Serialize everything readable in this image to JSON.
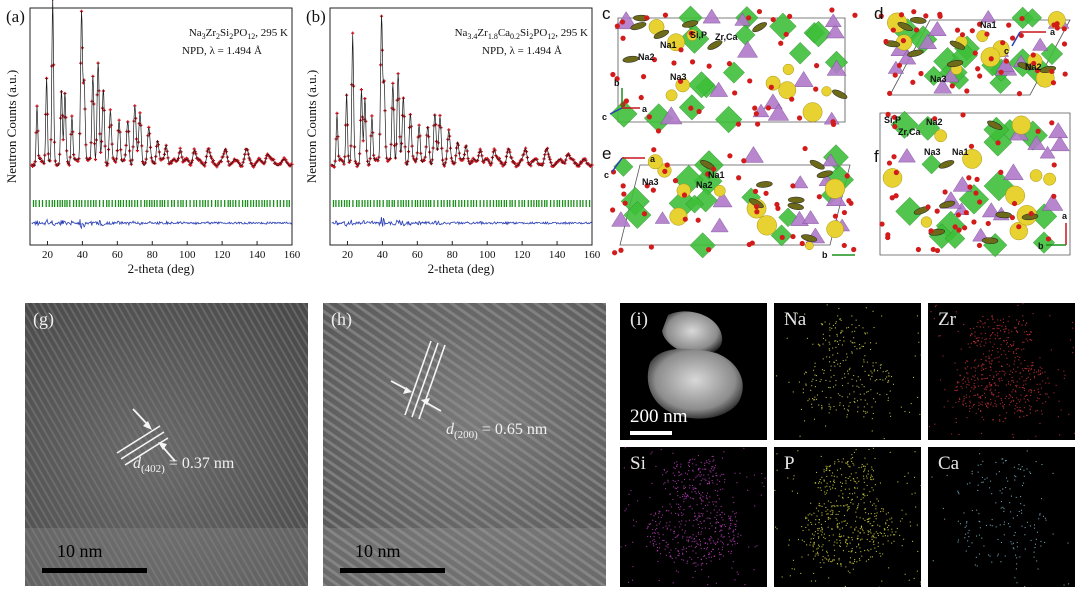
{
  "chart_data": [
    {
      "panel": "(a)",
      "type": "scatter",
      "sample_label_parts": [
        "Na",
        "3",
        "Zr",
        "2",
        "Si",
        "2",
        "PO",
        "12",
        ", 295 K"
      ],
      "technique": "NPD, λ = 1.494 Å",
      "xlabel": "2-theta (deg)",
      "ylabel": "Neutron Counts (a.u.)",
      "xlim": [
        10,
        160
      ],
      "xticks": [
        20,
        40,
        60,
        80,
        100,
        120,
        140,
        160
      ],
      "peaks": [
        {
          "x": 14,
          "h": 0.35
        },
        {
          "x": 19.5,
          "h": 0.55
        },
        {
          "x": 23,
          "h": 1.0
        },
        {
          "x": 28,
          "h": 0.45
        },
        {
          "x": 30,
          "h": 0.42
        },
        {
          "x": 34,
          "h": 0.3
        },
        {
          "x": 39.5,
          "h": 0.95
        },
        {
          "x": 41,
          "h": 0.5
        },
        {
          "x": 46,
          "h": 0.55
        },
        {
          "x": 49,
          "h": 0.62
        },
        {
          "x": 52,
          "h": 0.45
        },
        {
          "x": 56,
          "h": 0.32
        },
        {
          "x": 61,
          "h": 0.28
        },
        {
          "x": 66,
          "h": 0.25
        },
        {
          "x": 70,
          "h": 0.35
        },
        {
          "x": 73,
          "h": 0.3
        },
        {
          "x": 78,
          "h": 0.2
        },
        {
          "x": 83,
          "h": 0.15
        },
        {
          "x": 88,
          "h": 0.12
        },
        {
          "x": 96,
          "h": 0.1
        },
        {
          "x": 104,
          "h": 0.09
        },
        {
          "x": 112,
          "h": 0.08
        },
        {
          "x": 122,
          "h": 0.08
        },
        {
          "x": 134,
          "h": 0.07
        },
        {
          "x": 146,
          "h": 0.06
        }
      ]
    },
    {
      "panel": "(b)",
      "type": "scatter",
      "sample_label_parts": [
        "Na",
        "3.4",
        "Zr",
        "1.8",
        "Ca",
        "0.2",
        "Si",
        "2",
        "PO",
        "12",
        ", 295 K"
      ],
      "technique": "NPD, λ = 1.494 Å",
      "xlabel": "2-theta (deg)",
      "ylabel": "Neutron Counts (a.u.)",
      "xlim": [
        10,
        160
      ],
      "xticks": [
        20,
        40,
        60,
        80,
        100,
        120,
        140,
        160
      ],
      "peaks": [
        {
          "x": 14,
          "h": 0.3
        },
        {
          "x": 19.5,
          "h": 0.45
        },
        {
          "x": 23,
          "h": 0.78
        },
        {
          "x": 28,
          "h": 0.45
        },
        {
          "x": 30,
          "h": 0.38
        },
        {
          "x": 34,
          "h": 0.3
        },
        {
          "x": 39.5,
          "h": 0.92
        },
        {
          "x": 41,
          "h": 0.5
        },
        {
          "x": 46,
          "h": 0.5
        },
        {
          "x": 49,
          "h": 0.55
        },
        {
          "x": 52,
          "h": 0.4
        },
        {
          "x": 56,
          "h": 0.3
        },
        {
          "x": 61,
          "h": 0.25
        },
        {
          "x": 66,
          "h": 0.22
        },
        {
          "x": 70,
          "h": 0.3
        },
        {
          "x": 73,
          "h": 0.28
        },
        {
          "x": 78,
          "h": 0.18
        },
        {
          "x": 83,
          "h": 0.14
        },
        {
          "x": 88,
          "h": 0.12
        },
        {
          "x": 96,
          "h": 0.1
        },
        {
          "x": 104,
          "h": 0.09
        },
        {
          "x": 112,
          "h": 0.08
        },
        {
          "x": 122,
          "h": 0.08
        },
        {
          "x": 134,
          "h": 0.07
        },
        {
          "x": 146,
          "h": 0.06
        }
      ]
    }
  ],
  "colors": {
    "observed": "#c8141e",
    "calculated": "#1a1a1a",
    "bragg": "#1a8f1a",
    "difference": "#2b3fb5",
    "zr_octahedra": "#3fbf3a",
    "si_p_tetrahedra": "#b07ac9",
    "oxygen": "#d21b1b",
    "sodium": "#e8d232",
    "tem_background": "#5a5a5a"
  },
  "crystal_panels": {
    "c": {
      "letter": "c",
      "labels": [
        "Na1",
        "Na2",
        "Na3",
        "Si,P",
        "Zr,Ca"
      ],
      "axes": [
        "b",
        "c",
        "a"
      ]
    },
    "d": {
      "letter": "d",
      "labels": [
        "Na1",
        "Na2",
        "Na3"
      ],
      "axes": [
        "a",
        "c"
      ]
    },
    "e": {
      "letter": "e",
      "labels": [
        "Na1",
        "Na2",
        "Na3"
      ],
      "axes": [
        "a",
        "c",
        "b"
      ]
    },
    "f": {
      "letter": "f",
      "labels": [
        "Si,P",
        "Zr,Ca",
        "Na2",
        "Na3",
        "Na1"
      ],
      "axes": [
        "a",
        "b"
      ]
    }
  },
  "tem": {
    "g": {
      "label": "(g)",
      "d_symbol": "d",
      "d_index": "(402)",
      "d_value": "= 0.37 nm",
      "scale": "10 nm"
    },
    "h": {
      "label": "(h)",
      "d_symbol": "d",
      "d_index": "(200)",
      "d_value": "= 0.65 nm",
      "scale": "10 nm"
    }
  },
  "eds": {
    "label": "(i)",
    "scale": "200 nm",
    "maps": [
      {
        "element": "Na",
        "color": "#d4d14a"
      },
      {
        "element": "Zr",
        "color": "#c8323c"
      },
      {
        "element": "Si",
        "color": "#b43cb4"
      },
      {
        "element": "P",
        "color": "#d4d23c"
      },
      {
        "element": "Ca",
        "color": "#7fb4c8"
      }
    ]
  }
}
